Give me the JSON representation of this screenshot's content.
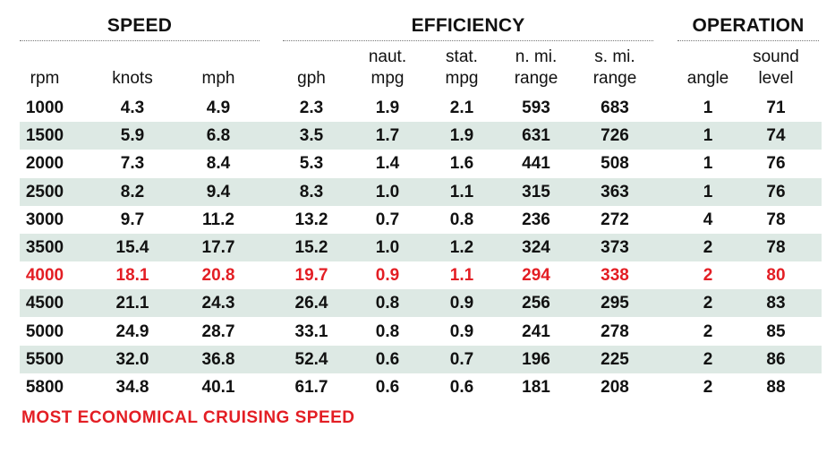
{
  "groups": {
    "speed": "SPEED",
    "efficiency": "EFFICIENCY",
    "operation": "OPERATION"
  },
  "columns": [
    {
      "key": "rpm",
      "label": "rpm"
    },
    {
      "key": "knots",
      "label": "knots"
    },
    {
      "key": "mph",
      "label": "mph"
    },
    {
      "key": "gph",
      "label": "gph"
    },
    {
      "key": "naut_mpg",
      "label": "naut.\nmpg"
    },
    {
      "key": "stat_mpg",
      "label": "stat.\nmpg"
    },
    {
      "key": "n_mi_range",
      "label": "n. mi.\nrange"
    },
    {
      "key": "s_mi_range",
      "label": "s. mi.\nrange"
    },
    {
      "key": "angle",
      "label": "angle"
    },
    {
      "key": "sound_level",
      "label": "sound\nlevel"
    }
  ],
  "rows": [
    {
      "rpm": "1000",
      "knots": "4.3",
      "mph": "4.9",
      "gph": "2.3",
      "naut_mpg": "1.9",
      "stat_mpg": "2.1",
      "n_mi_range": "593",
      "s_mi_range": "683",
      "angle": "1",
      "sound_level": "71",
      "shaded": false,
      "highlight": false
    },
    {
      "rpm": "1500",
      "knots": "5.9",
      "mph": "6.8",
      "gph": "3.5",
      "naut_mpg": "1.7",
      "stat_mpg": "1.9",
      "n_mi_range": "631",
      "s_mi_range": "726",
      "angle": "1",
      "sound_level": "74",
      "shaded": true,
      "highlight": false
    },
    {
      "rpm": "2000",
      "knots": "7.3",
      "mph": "8.4",
      "gph": "5.3",
      "naut_mpg": "1.4",
      "stat_mpg": "1.6",
      "n_mi_range": "441",
      "s_mi_range": "508",
      "angle": "1",
      "sound_level": "76",
      "shaded": false,
      "highlight": false
    },
    {
      "rpm": "2500",
      "knots": "8.2",
      "mph": "9.4",
      "gph": "8.3",
      "naut_mpg": "1.0",
      "stat_mpg": "1.1",
      "n_mi_range": "315",
      "s_mi_range": "363",
      "angle": "1",
      "sound_level": "76",
      "shaded": true,
      "highlight": false
    },
    {
      "rpm": "3000",
      "knots": "9.7",
      "mph": "11.2",
      "gph": "13.2",
      "naut_mpg": "0.7",
      "stat_mpg": "0.8",
      "n_mi_range": "236",
      "s_mi_range": "272",
      "angle": "4",
      "sound_level": "78",
      "shaded": false,
      "highlight": false
    },
    {
      "rpm": "3500",
      "knots": "15.4",
      "mph": "17.7",
      "gph": "15.2",
      "naut_mpg": "1.0",
      "stat_mpg": "1.2",
      "n_mi_range": "324",
      "s_mi_range": "373",
      "angle": "2",
      "sound_level": "78",
      "shaded": true,
      "highlight": false
    },
    {
      "rpm": "4000",
      "knots": "18.1",
      "mph": "20.8",
      "gph": "19.7",
      "naut_mpg": "0.9",
      "stat_mpg": "1.1",
      "n_mi_range": "294",
      "s_mi_range": "338",
      "angle": "2",
      "sound_level": "80",
      "shaded": false,
      "highlight": true
    },
    {
      "rpm": "4500",
      "knots": "21.1",
      "mph": "24.3",
      "gph": "26.4",
      "naut_mpg": "0.8",
      "stat_mpg": "0.9",
      "n_mi_range": "256",
      "s_mi_range": "295",
      "angle": "2",
      "sound_level": "83",
      "shaded": true,
      "highlight": false
    },
    {
      "rpm": "5000",
      "knots": "24.9",
      "mph": "28.7",
      "gph": "33.1",
      "naut_mpg": "0.8",
      "stat_mpg": "0.9",
      "n_mi_range": "241",
      "s_mi_range": "278",
      "angle": "2",
      "sound_level": "85",
      "shaded": false,
      "highlight": false
    },
    {
      "rpm": "5500",
      "knots": "32.0",
      "mph": "36.8",
      "gph": "52.4",
      "naut_mpg": "0.6",
      "stat_mpg": "0.7",
      "n_mi_range": "196",
      "s_mi_range": "225",
      "angle": "2",
      "sound_level": "86",
      "shaded": true,
      "highlight": false
    },
    {
      "rpm": "5800",
      "knots": "34.8",
      "mph": "40.1",
      "gph": "61.7",
      "naut_mpg": "0.6",
      "stat_mpg": "0.6",
      "n_mi_range": "181",
      "s_mi_range": "208",
      "angle": "2",
      "sound_level": "88",
      "shaded": false,
      "highlight": false
    }
  ],
  "footnote": "MOST ECONOMICAL CRUISING SPEED",
  "colors": {
    "highlight": "#e31e24",
    "shaded_row": "#dde9e4"
  }
}
